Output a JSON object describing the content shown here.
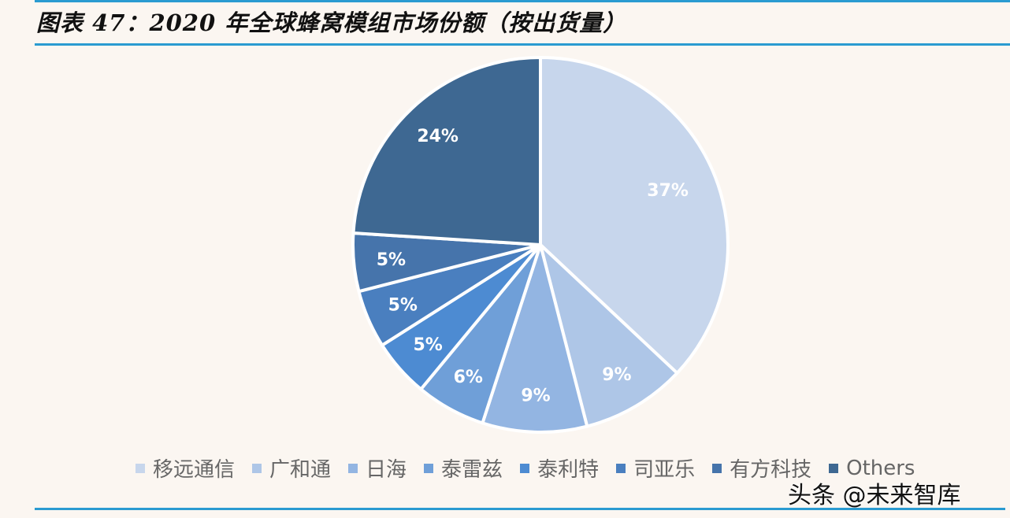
{
  "header": {
    "title": "图表 47：2020 年全球蜂窝模组市场份额（按出货量）"
  },
  "watermark": "头条 @未来智库",
  "colors": {
    "rule": "#2a9bd1",
    "background": "#fbf6f1"
  },
  "chart_data": {
    "type": "pie",
    "title": "2020 年全球蜂窝模组市场份额（按出货量）",
    "start_angle": "12 o'clock, clockwise",
    "legend_position": "bottom",
    "categories": [
      "移远通信",
      "广和通",
      "日海",
      "泰雷兹",
      "泰利特",
      "司亚乐",
      "有方科技",
      "Others"
    ],
    "values": [
      37,
      9,
      9,
      6,
      5,
      5,
      5,
      24
    ],
    "labels": [
      "37%",
      "9%",
      "9%",
      "6%",
      "5%",
      "5%",
      "5%",
      "24%"
    ],
    "colors": [
      "#c7d6ec",
      "#aec6e7",
      "#93b5e2",
      "#6f9fd8",
      "#4d8bd2",
      "#4a7fbf",
      "#4674ab",
      "#3e6892"
    ]
  }
}
